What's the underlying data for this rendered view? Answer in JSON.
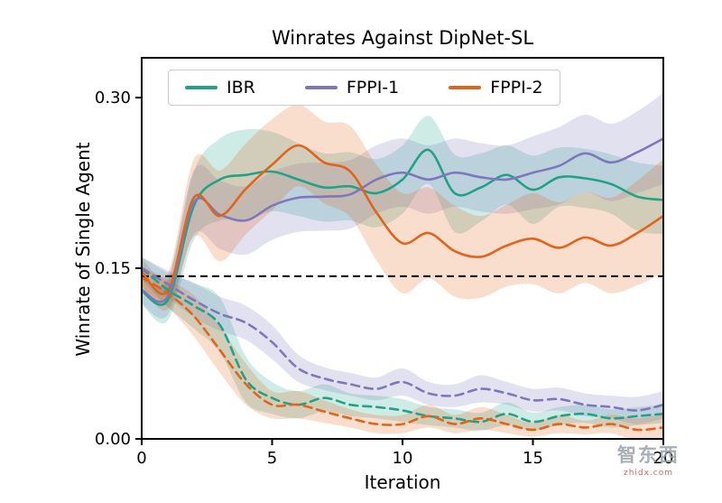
{
  "legend": {
    "items": [
      {
        "label": "IBR",
        "color": "#21a287"
      },
      {
        "label": "FPPI-1",
        "color": "#7d78bc"
      },
      {
        "label": "FPPI-2",
        "color": "#e2631a"
      }
    ]
  },
  "watermark": {
    "text": "智东西",
    "subtext": "zhidx.com"
  },
  "chart_data": {
    "type": "line",
    "title": "Winrates Against DipNet-SL",
    "xlabel": "Iteration",
    "ylabel": "Winrate of Single Agent",
    "xlim": [
      0,
      20
    ],
    "ylim": [
      0,
      0.335
    ],
    "xticks": [
      "0",
      "5",
      "10",
      "15",
      "20"
    ],
    "xtick_values": [
      0,
      5,
      10,
      15,
      20
    ],
    "yticks": [
      "0.00",
      "0.15",
      "0.30"
    ],
    "ytick_values": [
      0,
      0.15,
      0.3
    ],
    "grid": false,
    "legend_position": "upper left inside",
    "baseline": {
      "y": 0.143,
      "style": "dashed",
      "color": "#000000"
    },
    "x": [
      0,
      1,
      2,
      3,
      4,
      5,
      6,
      7,
      8,
      9,
      10,
      11,
      12,
      13,
      14,
      15,
      16,
      17,
      18,
      19,
      20
    ],
    "series": [
      {
        "name": "IBR",
        "line_style": "solid",
        "color": "#21a287",
        "values": [
          0.13,
          0.122,
          0.205,
          0.228,
          0.232,
          0.235,
          0.228,
          0.221,
          0.222,
          0.216,
          0.228,
          0.254,
          0.216,
          0.221,
          0.232,
          0.219,
          0.23,
          0.229,
          0.224,
          0.213,
          0.21
        ],
        "band": [
          0.012,
          0.018,
          0.03,
          0.036,
          0.04,
          0.035,
          0.032,
          0.03,
          0.03,
          0.03,
          0.03,
          0.03,
          0.034,
          0.03,
          0.026,
          0.03,
          0.026,
          0.026,
          0.026,
          0.03,
          0.03
        ]
      },
      {
        "name": "FPPI-1",
        "line_style": "solid",
        "color": "#7d78bc",
        "values": [
          0.131,
          0.125,
          0.208,
          0.197,
          0.192,
          0.205,
          0.212,
          0.213,
          0.215,
          0.228,
          0.234,
          0.228,
          0.234,
          0.23,
          0.228,
          0.234,
          0.24,
          0.251,
          0.243,
          0.252,
          0.264
        ],
        "band": [
          0.012,
          0.016,
          0.028,
          0.03,
          0.03,
          0.03,
          0.03,
          0.03,
          0.03,
          0.03,
          0.03,
          0.03,
          0.03,
          0.03,
          0.03,
          0.032,
          0.034,
          0.034,
          0.034,
          0.036,
          0.04
        ]
      },
      {
        "name": "FPPI-2",
        "line_style": "solid",
        "color": "#e2631a",
        "values": [
          0.147,
          0.13,
          0.212,
          0.196,
          0.22,
          0.241,
          0.258,
          0.243,
          0.235,
          0.199,
          0.172,
          0.181,
          0.165,
          0.16,
          0.17,
          0.176,
          0.168,
          0.177,
          0.17,
          0.181,
          0.196
        ],
        "band": [
          0.012,
          0.016,
          0.034,
          0.04,
          0.04,
          0.04,
          0.036,
          0.036,
          0.04,
          0.042,
          0.044,
          0.04,
          0.04,
          0.036,
          0.036,
          0.04,
          0.04,
          0.04,
          0.042,
          0.046,
          0.05
        ]
      },
      {
        "name": "IBR",
        "line_style": "dashed",
        "color": "#21a287",
        "values": [
          0.15,
          0.131,
          0.117,
          0.1,
          0.052,
          0.036,
          0.03,
          0.036,
          0.03,
          0.028,
          0.025,
          0.02,
          0.018,
          0.015,
          0.022,
          0.015,
          0.02,
          0.022,
          0.018,
          0.02,
          0.022
        ],
        "band": [
          0.01,
          0.015,
          0.02,
          0.024,
          0.02,
          0.014,
          0.012,
          0.012,
          0.01,
          0.01,
          0.01,
          0.008,
          0.008,
          0.008,
          0.01,
          0.008,
          0.008,
          0.008,
          0.008,
          0.008,
          0.008
        ]
      },
      {
        "name": "FPPI-1",
        "line_style": "dashed",
        "color": "#7d78bc",
        "values": [
          0.15,
          0.136,
          0.122,
          0.11,
          0.102,
          0.085,
          0.062,
          0.053,
          0.048,
          0.044,
          0.05,
          0.04,
          0.038,
          0.044,
          0.04,
          0.034,
          0.035,
          0.03,
          0.028,
          0.025,
          0.03
        ],
        "band": [
          0.01,
          0.012,
          0.015,
          0.015,
          0.015,
          0.015,
          0.012,
          0.01,
          0.01,
          0.01,
          0.012,
          0.01,
          0.01,
          0.012,
          0.01,
          0.01,
          0.01,
          0.01,
          0.01,
          0.012,
          0.012
        ]
      },
      {
        "name": "FPPI-2",
        "line_style": "dashed",
        "color": "#e2631a",
        "values": [
          0.142,
          0.128,
          0.108,
          0.078,
          0.048,
          0.03,
          0.03,
          0.024,
          0.018,
          0.013,
          0.013,
          0.02,
          0.013,
          0.018,
          0.013,
          0.008,
          0.013,
          0.01,
          0.013,
          0.008,
          0.01
        ],
        "band": [
          0.01,
          0.012,
          0.018,
          0.02,
          0.018,
          0.012,
          0.012,
          0.01,
          0.008,
          0.008,
          0.008,
          0.01,
          0.008,
          0.01,
          0.008,
          0.006,
          0.008,
          0.006,
          0.008,
          0.01,
          0.012
        ]
      }
    ]
  }
}
